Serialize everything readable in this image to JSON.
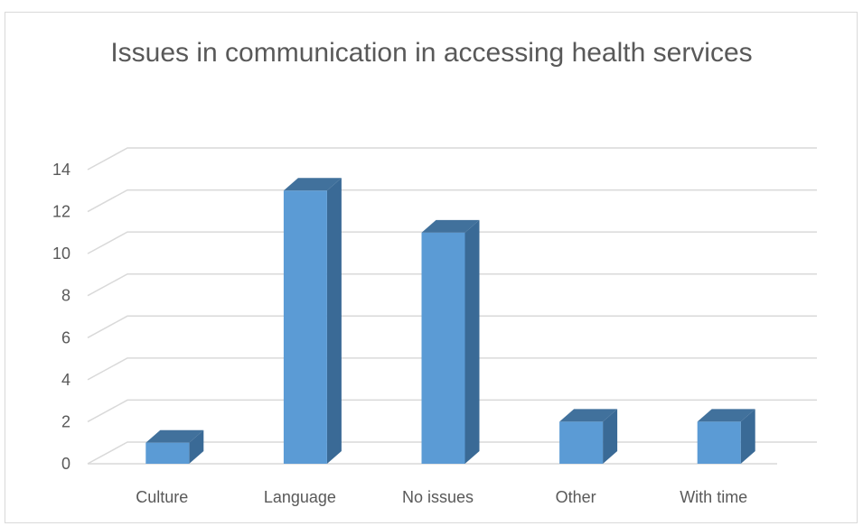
{
  "chart_data": {
    "type": "bar",
    "title": "Issues in communication in accessing health services",
    "categories": [
      "Culture",
      "Language",
      "No issues",
      "Other",
      "With time"
    ],
    "values": [
      1,
      13,
      11,
      2,
      2
    ],
    "ylim": [
      0,
      14
    ],
    "yticks": [
      0,
      2,
      4,
      6,
      8,
      10,
      12,
      14
    ],
    "grid": true,
    "style": "3d-column",
    "colors": {
      "bar_front": "#5b9bd5",
      "bar_side": "#3a6a96",
      "bar_top": "#41719c",
      "gridline": "#d9d9d9",
      "text": "#595959"
    }
  }
}
